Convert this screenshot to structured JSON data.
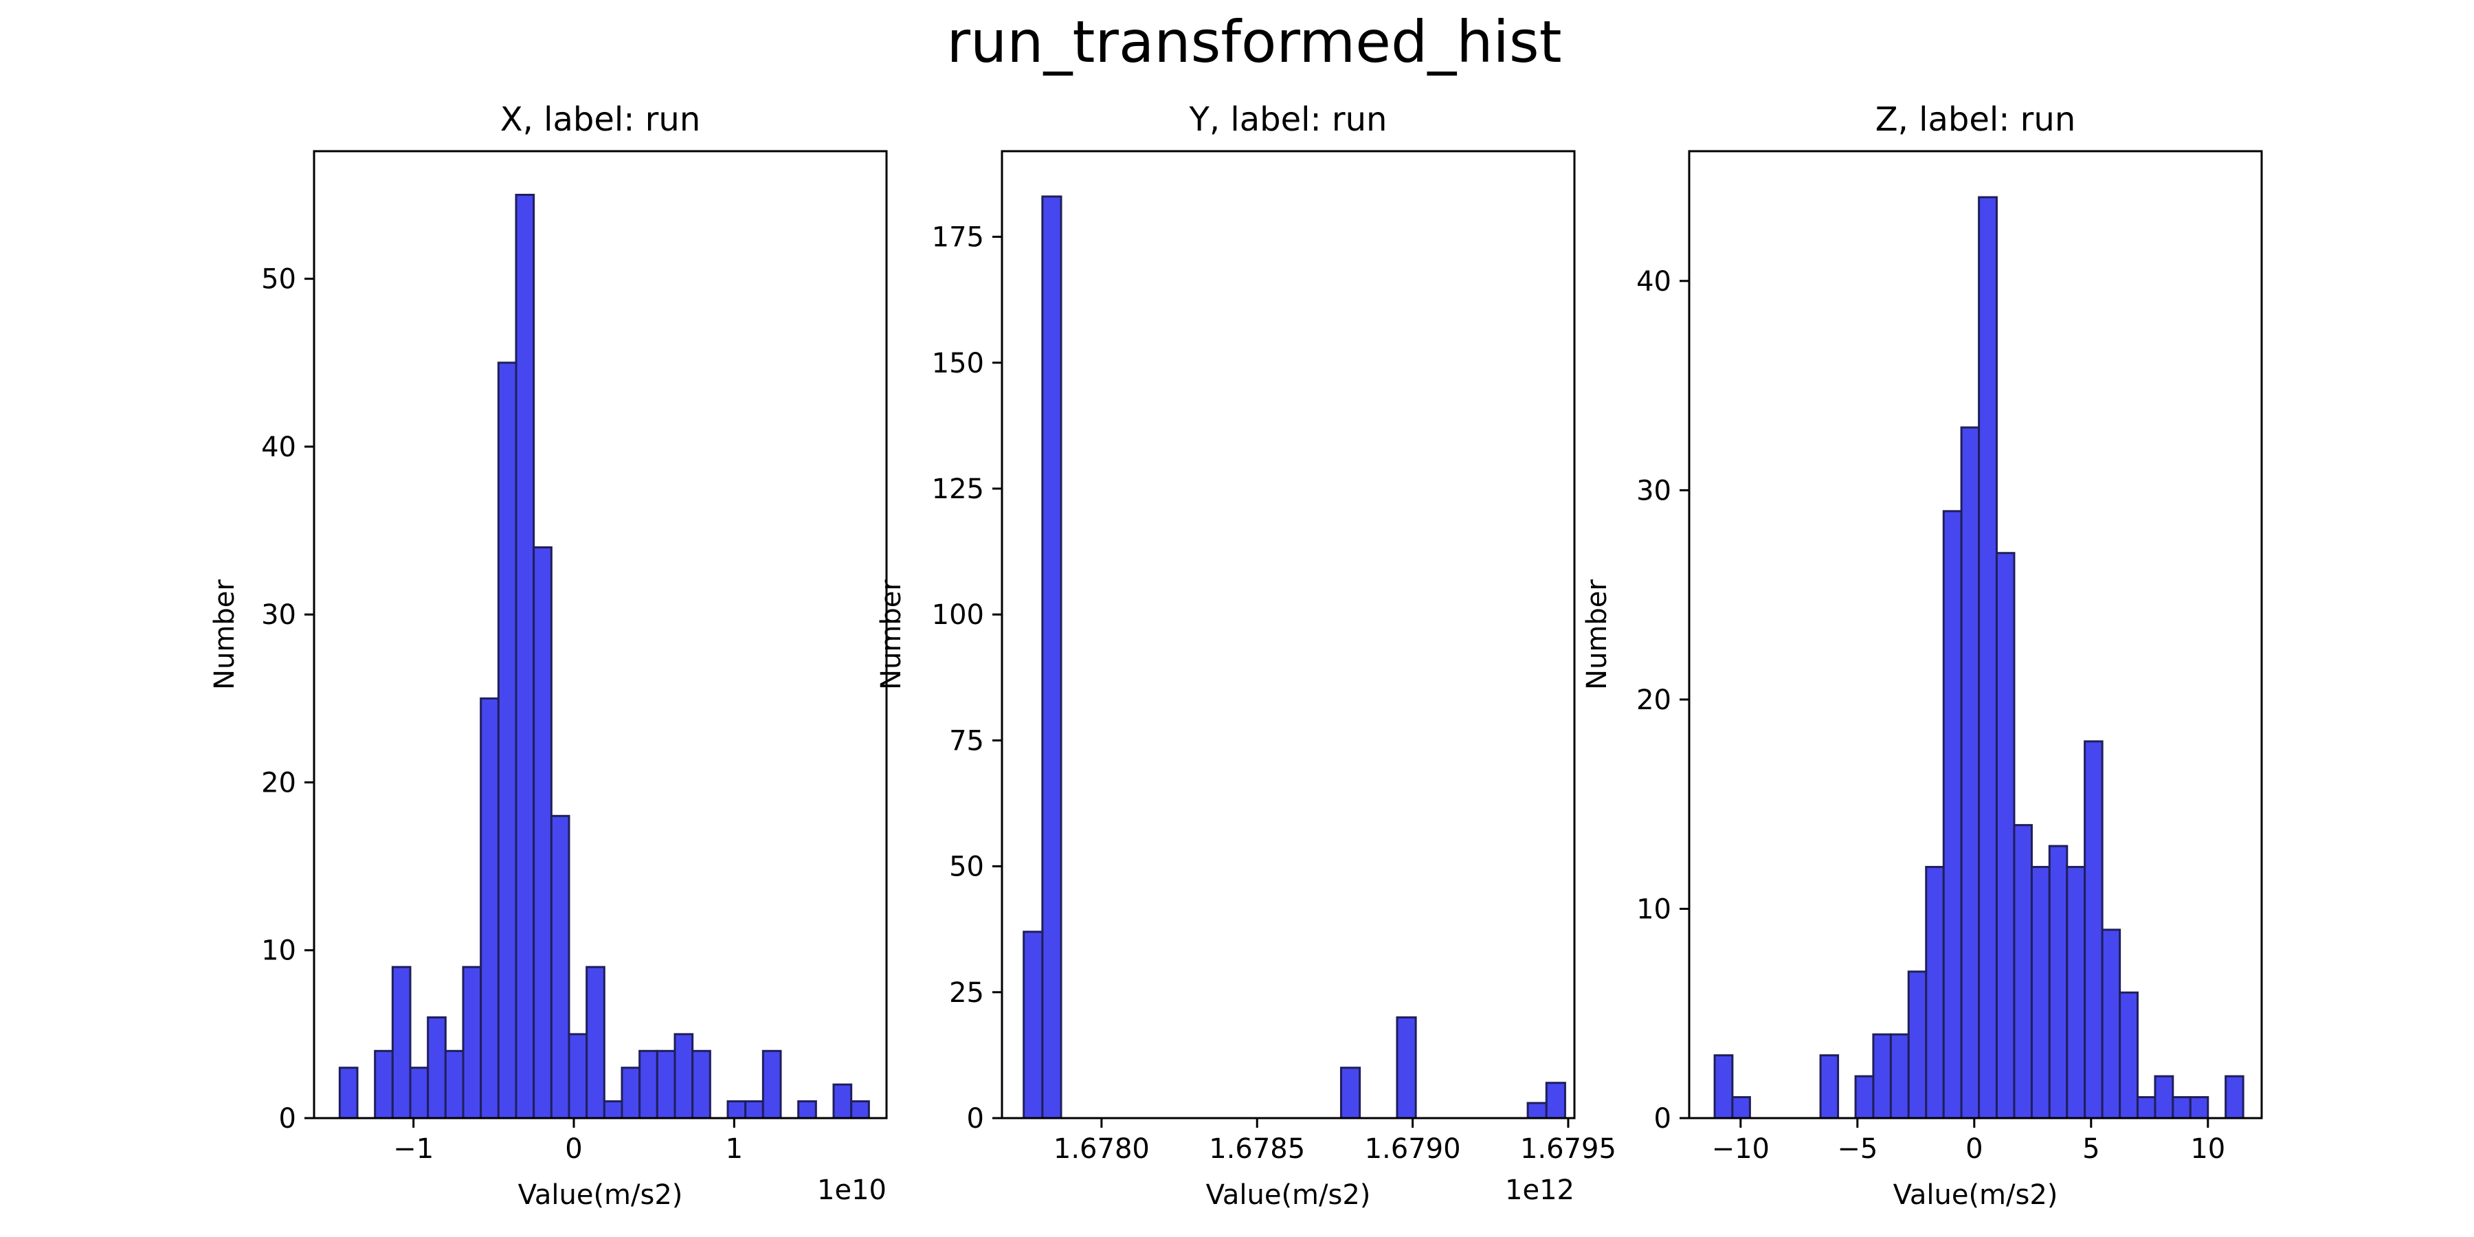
{
  "suptitle": "run_transformed_hist",
  "colors": {
    "bar_fill": "#4747f0",
    "bar_edge": "#1f1f5a",
    "axis": "#000000"
  },
  "chart_data": [
    {
      "type": "bar",
      "title": "X, label: run",
      "xlabel": "Value(m/s2)",
      "ylabel": "Number",
      "offset_text": "1e10",
      "xlim": [
        -1.62,
        1.95
      ],
      "ylim": [
        0,
        57.6
      ],
      "xticks": [
        {
          "value": -1,
          "label": "−1"
        },
        {
          "value": 0,
          "label": "0"
        },
        {
          "value": 1,
          "label": "1"
        }
      ],
      "yticks": [
        {
          "value": 0,
          "label": "0"
        },
        {
          "value": 10,
          "label": "10"
        },
        {
          "value": 20,
          "label": "20"
        },
        {
          "value": 30,
          "label": "30"
        },
        {
          "value": 40,
          "label": "40"
        },
        {
          "value": 50,
          "label": "50"
        }
      ],
      "bins": [
        {
          "x0": -1.46,
          "x1": -1.35,
          "count": 3
        },
        {
          "x0": -1.35,
          "x1": -1.24,
          "count": 0
        },
        {
          "x0": -1.24,
          "x1": -1.13,
          "count": 4
        },
        {
          "x0": -1.13,
          "x1": -1.02,
          "count": 9
        },
        {
          "x0": -1.02,
          "x1": -0.91,
          "count": 3
        },
        {
          "x0": -0.91,
          "x1": -0.8,
          "count": 6
        },
        {
          "x0": -0.8,
          "x1": -0.69,
          "count": 4
        },
        {
          "x0": -0.69,
          "x1": -0.58,
          "count": 9
        },
        {
          "x0": -0.58,
          "x1": -0.47,
          "count": 25
        },
        {
          "x0": -0.47,
          "x1": -0.36,
          "count": 45
        },
        {
          "x0": -0.36,
          "x1": -0.25,
          "count": 55
        },
        {
          "x0": -0.25,
          "x1": -0.14,
          "count": 34
        },
        {
          "x0": -0.14,
          "x1": -0.03,
          "count": 18
        },
        {
          "x0": -0.03,
          "x1": 0.08,
          "count": 5
        },
        {
          "x0": 0.08,
          "x1": 0.19,
          "count": 9
        },
        {
          "x0": 0.19,
          "x1": 0.3,
          "count": 1
        },
        {
          "x0": 0.3,
          "x1": 0.41,
          "count": 3
        },
        {
          "x0": 0.41,
          "x1": 0.52,
          "count": 4
        },
        {
          "x0": 0.52,
          "x1": 0.63,
          "count": 4
        },
        {
          "x0": 0.63,
          "x1": 0.74,
          "count": 5
        },
        {
          "x0": 0.74,
          "x1": 0.85,
          "count": 4
        },
        {
          "x0": 0.85,
          "x1": 0.96,
          "count": 0
        },
        {
          "x0": 0.96,
          "x1": 1.07,
          "count": 1
        },
        {
          "x0": 1.07,
          "x1": 1.18,
          "count": 1
        },
        {
          "x0": 1.18,
          "x1": 1.29,
          "count": 4
        },
        {
          "x0": 1.29,
          "x1": 1.4,
          "count": 0
        },
        {
          "x0": 1.4,
          "x1": 1.51,
          "count": 1
        },
        {
          "x0": 1.51,
          "x1": 1.62,
          "count": 0
        },
        {
          "x0": 1.62,
          "x1": 1.73,
          "count": 2
        },
        {
          "x0": 1.73,
          "x1": 1.84,
          "count": 1
        }
      ]
    },
    {
      "type": "bar",
      "title": "Y, label: run",
      "xlabel": "Value(m/s2)",
      "ylabel": "Number",
      "offset_text": "1e12",
      "xlim": [
        1.67768,
        1.67952
      ],
      "ylim": [
        0,
        192
      ],
      "xticks": [
        {
          "value": 1.678,
          "label": "1.6780"
        },
        {
          "value": 1.6785,
          "label": "1.6785"
        },
        {
          "value": 1.679,
          "label": "1.6790"
        },
        {
          "value": 1.6795,
          "label": "1.6795"
        }
      ],
      "yticks": [
        {
          "value": 0,
          "label": "0"
        },
        {
          "value": 25,
          "label": "25"
        },
        {
          "value": 50,
          "label": "50"
        },
        {
          "value": 75,
          "label": "75"
        },
        {
          "value": 100,
          "label": "100"
        },
        {
          "value": 125,
          "label": "125"
        },
        {
          "value": 150,
          "label": "150"
        },
        {
          "value": 175,
          "label": "175"
        }
      ],
      "bins": [
        {
          "x0": 1.67775,
          "x1": 1.67781,
          "count": 37
        },
        {
          "x0": 1.67781,
          "x1": 1.67787,
          "count": 183
        },
        {
          "x0": 1.67787,
          "x1": 1.67793,
          "count": 0
        },
        {
          "x0": 1.67793,
          "x1": 1.67799,
          "count": 0
        },
        {
          "x0": 1.67799,
          "x1": 1.67805,
          "count": 0
        },
        {
          "x0": 1.67805,
          "x1": 1.67811,
          "count": 0
        },
        {
          "x0": 1.67811,
          "x1": 1.67817,
          "count": 0
        },
        {
          "x0": 1.67817,
          "x1": 1.67823,
          "count": 0
        },
        {
          "x0": 1.67823,
          "x1": 1.67829,
          "count": 0
        },
        {
          "x0": 1.67829,
          "x1": 1.67835,
          "count": 0
        },
        {
          "x0": 1.67835,
          "x1": 1.67841,
          "count": 0
        },
        {
          "x0": 1.67841,
          "x1": 1.67847,
          "count": 0
        },
        {
          "x0": 1.67847,
          "x1": 1.67853,
          "count": 0
        },
        {
          "x0": 1.67853,
          "x1": 1.67859,
          "count": 0
        },
        {
          "x0": 1.67859,
          "x1": 1.67865,
          "count": 0
        },
        {
          "x0": 1.67865,
          "x1": 1.67871,
          "count": 0
        },
        {
          "x0": 1.67871,
          "x1": 1.67877,
          "count": 0
        },
        {
          "x0": 1.67877,
          "x1": 1.67883,
          "count": 10
        },
        {
          "x0": 1.67883,
          "x1": 1.67889,
          "count": 0
        },
        {
          "x0": 1.67889,
          "x1": 1.67895,
          "count": 0
        },
        {
          "x0": 1.67895,
          "x1": 1.67901,
          "count": 20
        },
        {
          "x0": 1.67901,
          "x1": 1.67907,
          "count": 0
        },
        {
          "x0": 1.67907,
          "x1": 1.67913,
          "count": 0
        },
        {
          "x0": 1.67913,
          "x1": 1.67919,
          "count": 0
        },
        {
          "x0": 1.67919,
          "x1": 1.67925,
          "count": 0
        },
        {
          "x0": 1.67925,
          "x1": 1.67931,
          "count": 0
        },
        {
          "x0": 1.67931,
          "x1": 1.67937,
          "count": 0
        },
        {
          "x0": 1.67937,
          "x1": 1.67943,
          "count": 3
        },
        {
          "x0": 1.67943,
          "x1": 1.67949,
          "count": 7
        }
      ]
    },
    {
      "type": "bar",
      "title": "Z, label: run",
      "xlabel": "Value(m/s2)",
      "ylabel": "Number",
      "offset_text": "",
      "xlim": [
        -12.2,
        12.3
      ],
      "ylim": [
        0,
        46.2
      ],
      "xticks": [
        {
          "value": -10,
          "label": "−10"
        },
        {
          "value": -5,
          "label": "−5"
        },
        {
          "value": 0,
          "label": "0"
        },
        {
          "value": 5,
          "label": "5"
        },
        {
          "value": 10,
          "label": "10"
        }
      ],
      "yticks": [
        {
          "value": 0,
          "label": "0"
        },
        {
          "value": 10,
          "label": "10"
        },
        {
          "value": 20,
          "label": "20"
        },
        {
          "value": 30,
          "label": "30"
        },
        {
          "value": 40,
          "label": "40"
        }
      ],
      "bins": [
        {
          "x0": -11.11,
          "x1": -10.35,
          "count": 3
        },
        {
          "x0": -10.35,
          "x1": -9.6,
          "count": 1
        },
        {
          "x0": -9.6,
          "x1": -8.85,
          "count": 0
        },
        {
          "x0": -8.85,
          "x1": -8.09,
          "count": 0
        },
        {
          "x0": -8.09,
          "x1": -7.34,
          "count": 0
        },
        {
          "x0": -7.34,
          "x1": -6.58,
          "count": 0
        },
        {
          "x0": -6.58,
          "x1": -5.83,
          "count": 3
        },
        {
          "x0": -5.83,
          "x1": -5.08,
          "count": 0
        },
        {
          "x0": -5.08,
          "x1": -4.32,
          "count": 2
        },
        {
          "x0": -4.32,
          "x1": -3.57,
          "count": 4
        },
        {
          "x0": -3.57,
          "x1": -2.81,
          "count": 4
        },
        {
          "x0": -2.81,
          "x1": -2.06,
          "count": 7
        },
        {
          "x0": -2.06,
          "x1": -1.31,
          "count": 12
        },
        {
          "x0": -1.31,
          "x1": -0.55,
          "count": 29
        },
        {
          "x0": -0.55,
          "x1": 0.2,
          "count": 33
        },
        {
          "x0": 0.2,
          "x1": 0.96,
          "count": 44
        },
        {
          "x0": 0.96,
          "x1": 1.71,
          "count": 27
        },
        {
          "x0": 1.71,
          "x1": 2.46,
          "count": 14
        },
        {
          "x0": 2.46,
          "x1": 3.22,
          "count": 12
        },
        {
          "x0": 3.22,
          "x1": 3.97,
          "count": 13
        },
        {
          "x0": 3.97,
          "x1": 4.73,
          "count": 12
        },
        {
          "x0": 4.73,
          "x1": 5.48,
          "count": 18
        },
        {
          "x0": 5.48,
          "x1": 6.23,
          "count": 9
        },
        {
          "x0": 6.23,
          "x1": 6.99,
          "count": 6
        },
        {
          "x0": 6.99,
          "x1": 7.74,
          "count": 1
        },
        {
          "x0": 7.74,
          "x1": 8.5,
          "count": 2
        },
        {
          "x0": 8.5,
          "x1": 9.25,
          "count": 1
        },
        {
          "x0": 9.25,
          "x1": 10.0,
          "count": 1
        },
        {
          "x0": 10.0,
          "x1": 10.76,
          "count": 0
        },
        {
          "x0": 10.76,
          "x1": 11.51,
          "count": 2
        }
      ]
    }
  ]
}
